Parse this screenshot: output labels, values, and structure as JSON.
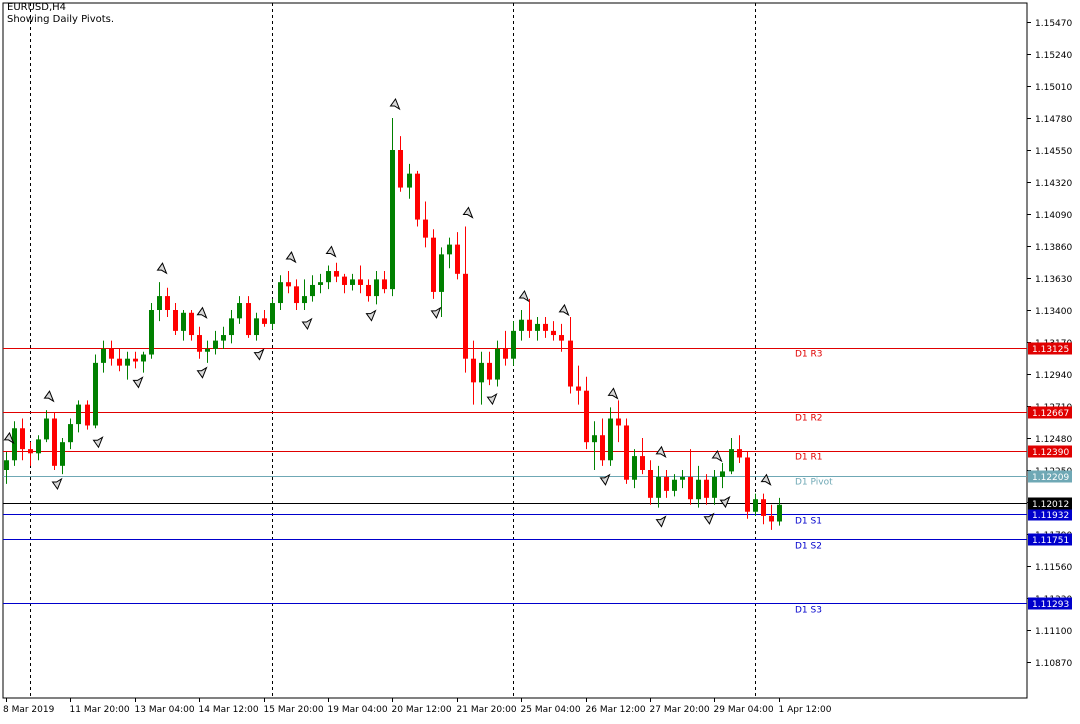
{
  "header": {
    "symbol": "EURUSD,H4",
    "subtitle": "Showing Daily Pivots."
  },
  "colors": {
    "background": "#ffffff",
    "bull": "#008000",
    "bear": "#ff0000",
    "resistance": "#e00000",
    "support": "#0000cc",
    "pivot": "#6fa8b5",
    "current": "#000000",
    "axis": "#000000",
    "separator": "#000000"
  },
  "chart_data": {
    "type": "candlestick",
    "symbol": "EURUSD",
    "timeframe": "H4",
    "ylim": [
      1.1063,
      1.1563
    ],
    "y_ticks": [
      "1.15470",
      "1.15240",
      "1.15010",
      "1.14780",
      "1.14550",
      "1.14320",
      "1.14090",
      "1.13860",
      "1.13630",
      "1.13400",
      "1.13170",
      "1.12940",
      "1.12710",
      "1.12480",
      "1.12250",
      "1.12020",
      "1.11790",
      "1.11560",
      "1.11330",
      "1.11100",
      "1.10870"
    ],
    "x_labels": [
      "8 Mar 2019",
      "11 Mar 20:00",
      "13 Mar 04:00",
      "14 Mar 12:00",
      "15 Mar 20:00",
      "19 Mar 04:00",
      "20 Mar 12:00",
      "21 Mar 20:00",
      "25 Mar 04:00",
      "26 Mar 12:00",
      "27 Mar 20:00",
      "29 Mar 04:00",
      "1 Apr 12:00"
    ],
    "x_label_bar_index": [
      0,
      8,
      16,
      24,
      32,
      40,
      48,
      56,
      64,
      72,
      80,
      88,
      96
    ],
    "day_separator_bar_index": [
      3,
      33,
      63,
      93
    ],
    "candles": [
      [
        1.1225,
        1.1238,
        1.1215,
        1.1232
      ],
      [
        1.1232,
        1.126,
        1.1228,
        1.1255
      ],
      [
        1.1255,
        1.1262,
        1.1232,
        1.124
      ],
      [
        1.124,
        1.1245,
        1.1228,
        1.1237
      ],
      [
        1.1237,
        1.125,
        1.1232,
        1.1247
      ],
      [
        1.1247,
        1.1268,
        1.1245,
        1.1262
      ],
      [
        1.1262,
        1.1266,
        1.1225,
        1.1228
      ],
      [
        1.1228,
        1.1248,
        1.1222,
        1.1245
      ],
      [
        1.1245,
        1.1262,
        1.124,
        1.1258
      ],
      [
        1.1258,
        1.1275,
        1.1252,
        1.1272
      ],
      [
        1.1272,
        1.1275,
        1.1254,
        1.1257
      ],
      [
        1.1257,
        1.1308,
        1.1255,
        1.1302
      ],
      [
        1.1302,
        1.1318,
        1.1295,
        1.1312
      ],
      [
        1.1312,
        1.1318,
        1.13,
        1.1305
      ],
      [
        1.1305,
        1.1312,
        1.1296,
        1.13
      ],
      [
        1.13,
        1.131,
        1.129,
        1.1305
      ],
      [
        1.1305,
        1.131,
        1.1298,
        1.1303
      ],
      [
        1.1303,
        1.131,
        1.1295,
        1.1308
      ],
      [
        1.1308,
        1.1345,
        1.1305,
        1.134
      ],
      [
        1.134,
        1.136,
        1.1332,
        1.135
      ],
      [
        1.135,
        1.1356,
        1.1335,
        1.134
      ],
      [
        1.134,
        1.1345,
        1.1322,
        1.1325
      ],
      [
        1.1325,
        1.134,
        1.1318,
        1.1338
      ],
      [
        1.1338,
        1.134,
        1.1318,
        1.1322
      ],
      [
        1.1322,
        1.1328,
        1.1305,
        1.131
      ],
      [
        1.131,
        1.1318,
        1.1302,
        1.1312
      ],
      [
        1.1312,
        1.1325,
        1.1308,
        1.1318
      ],
      [
        1.1318,
        1.1328,
        1.1312,
        1.1322
      ],
      [
        1.1322,
        1.134,
        1.1316,
        1.1334
      ],
      [
        1.1334,
        1.135,
        1.133,
        1.1345
      ],
      [
        1.1345,
        1.135,
        1.132,
        1.1322
      ],
      [
        1.1322,
        1.1338,
        1.1318,
        1.1334
      ],
      [
        1.1334,
        1.134,
        1.1328,
        1.133
      ],
      [
        1.133,
        1.1348,
        1.1326,
        1.1345
      ],
      [
        1.1345,
        1.1365,
        1.134,
        1.136
      ],
      [
        1.136,
        1.1368,
        1.1352,
        1.1357
      ],
      [
        1.1357,
        1.1362,
        1.134,
        1.1345
      ],
      [
        1.1345,
        1.1362,
        1.134,
        1.135
      ],
      [
        1.135,
        1.1365,
        1.1346,
        1.1358
      ],
      [
        1.1358,
        1.1366,
        1.1352,
        1.136
      ],
      [
        1.136,
        1.1372,
        1.1355,
        1.1368
      ],
      [
        1.1368,
        1.1374,
        1.136,
        1.1364
      ],
      [
        1.1364,
        1.1366,
        1.1352,
        1.1358
      ],
      [
        1.1358,
        1.1366,
        1.1354,
        1.1362
      ],
      [
        1.1362,
        1.1372,
        1.1352,
        1.1358
      ],
      [
        1.1358,
        1.1362,
        1.1346,
        1.135
      ],
      [
        1.135,
        1.1368,
        1.1344,
        1.1362
      ],
      [
        1.1362,
        1.1368,
        1.1352,
        1.1355
      ],
      [
        1.1355,
        1.1478,
        1.135,
        1.1455
      ],
      [
        1.1455,
        1.1465,
        1.1425,
        1.1428
      ],
      [
        1.1428,
        1.1445,
        1.142,
        1.1438
      ],
      [
        1.1438,
        1.144,
        1.14,
        1.1405
      ],
      [
        1.1405,
        1.1418,
        1.1385,
        1.1392
      ],
      [
        1.1392,
        1.1398,
        1.1348,
        1.1353
      ],
      [
        1.1353,
        1.1385,
        1.1335,
        1.138
      ],
      [
        1.138,
        1.1392,
        1.137,
        1.1387
      ],
      [
        1.1387,
        1.1396,
        1.1362,
        1.1366
      ],
      [
        1.1366,
        1.14,
        1.1295,
        1.1305
      ],
      [
        1.1305,
        1.1318,
        1.1272,
        1.1288
      ],
      [
        1.1288,
        1.131,
        1.1272,
        1.1302
      ],
      [
        1.1302,
        1.131,
        1.1286,
        1.129
      ],
      [
        1.129,
        1.1318,
        1.1285,
        1.1312
      ],
      [
        1.1312,
        1.1325,
        1.13,
        1.1305
      ],
      [
        1.1305,
        1.1332,
        1.13,
        1.1325
      ],
      [
        1.1325,
        1.134,
        1.1318,
        1.1333
      ],
      [
        1.1333,
        1.1348,
        1.132,
        1.1325
      ],
      [
        1.1325,
        1.1335,
        1.1318,
        1.133
      ],
      [
        1.133,
        1.1335,
        1.132,
        1.1325
      ],
      [
        1.1325,
        1.1332,
        1.1318,
        1.1322
      ],
      [
        1.1322,
        1.133,
        1.131,
        1.1318
      ],
      [
        1.1318,
        1.1335,
        1.128,
        1.1285
      ],
      [
        1.1285,
        1.13,
        1.1272,
        1.1282
      ],
      [
        1.1282,
        1.1292,
        1.124,
        1.1245
      ],
      [
        1.1245,
        1.126,
        1.1225,
        1.125
      ],
      [
        1.125,
        1.1262,
        1.1228,
        1.1232
      ],
      [
        1.1232,
        1.127,
        1.1228,
        1.1262
      ],
      [
        1.1262,
        1.1275,
        1.1245,
        1.1257
      ],
      [
        1.1257,
        1.1262,
        1.1215,
        1.1218
      ],
      [
        1.1218,
        1.124,
        1.1212,
        1.1235
      ],
      [
        1.1235,
        1.1248,
        1.1222,
        1.1225
      ],
      [
        1.1225,
        1.1232,
        1.12,
        1.1205
      ],
      [
        1.1205,
        1.1228,
        1.1198,
        1.122
      ],
      [
        1.122,
        1.1225,
        1.1205,
        1.121
      ],
      [
        1.121,
        1.1222,
        1.1206,
        1.1218
      ],
      [
        1.1218,
        1.1225,
        1.1212,
        1.122
      ],
      [
        1.122,
        1.124,
        1.12,
        1.1204
      ],
      [
        1.1204,
        1.1228,
        1.1198,
        1.1218
      ],
      [
        1.1218,
        1.1222,
        1.12,
        1.1205
      ],
      [
        1.1205,
        1.1225,
        1.12,
        1.122
      ],
      [
        1.122,
        1.123,
        1.1212,
        1.1224
      ],
      [
        1.1224,
        1.1248,
        1.1222,
        1.124
      ],
      [
        1.124,
        1.125,
        1.123,
        1.1234
      ],
      [
        1.1234,
        1.1238,
        1.119,
        1.1195
      ],
      [
        1.1195,
        1.1208,
        1.1192,
        1.1204
      ],
      [
        1.1204,
        1.1208,
        1.1186,
        1.1192
      ],
      [
        1.1192,
        1.12,
        1.1182,
        1.1188
      ],
      [
        1.1188,
        1.1205,
        1.1185,
        1.12
      ]
    ],
    "fractals_up_bar_index": [
      0,
      5,
      19,
      24,
      35,
      40,
      48,
      57,
      64,
      69,
      75,
      81,
      88,
      94
    ],
    "fractals_down_bar_index": [
      6,
      11,
      16,
      24,
      31,
      37,
      45,
      53,
      60,
      74,
      81,
      87,
      89
    ],
    "pivot_levels": [
      {
        "label": "D1  R3",
        "value": 1.13125,
        "price_label": "1.13125",
        "role": "resistance"
      },
      {
        "label": "D1  R2",
        "value": 1.12667,
        "price_label": "1.12667",
        "role": "resistance"
      },
      {
        "label": "D1  R1",
        "value": 1.1239,
        "price_label": "1.12390",
        "role": "resistance"
      },
      {
        "label": "D1  Pivot",
        "value": 1.12209,
        "price_label": "1.12209",
        "role": "pivot"
      },
      {
        "label": "D1  S1",
        "value": 1.11932,
        "price_label": "1.11932",
        "role": "support"
      },
      {
        "label": "D1  S2",
        "value": 1.11751,
        "price_label": "1.11751",
        "role": "support"
      },
      {
        "label": "D1  S3",
        "value": 1.11293,
        "price_label": "1.11293",
        "role": "support"
      }
    ],
    "current_price": {
      "value": 1.12012,
      "label": "1.12012"
    }
  }
}
